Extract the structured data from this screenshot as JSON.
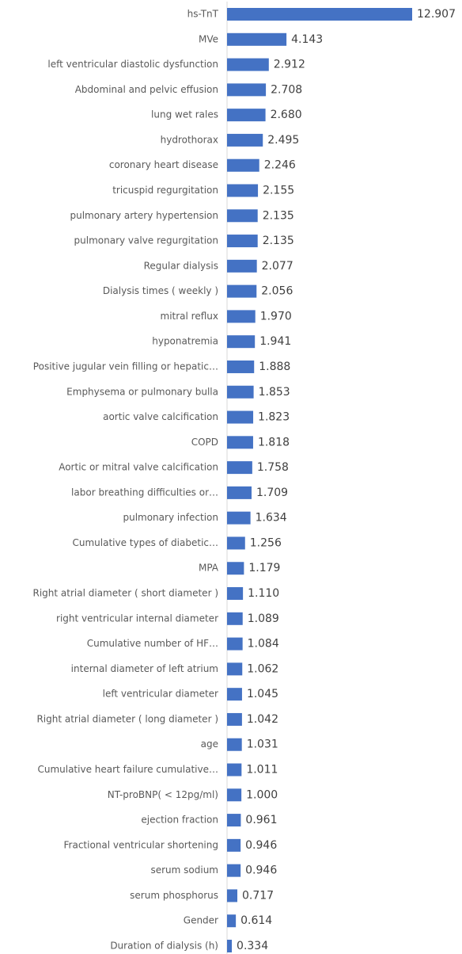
{
  "chart_data": {
    "type": "barh",
    "color": "#4472c4",
    "categories": [
      "hs-TnT",
      "MVe",
      "left ventricular diastolic dysfunction",
      "Abdominal and pelvic effusion",
      "lung wet rales",
      "hydrothorax",
      "coronary heart disease",
      "tricuspid regurgitation",
      "pulmonary artery hypertension",
      "pulmonary valve regurgitation",
      "Regular dialysis",
      "Dialysis times ( weekly )",
      "mitral reflux",
      "hyponatremia",
      "Positive jugular vein filling or hepatic…",
      "Emphysema or pulmonary bulla",
      "aortic valve calcification",
      "COPD",
      "Aortic or mitral valve calcification",
      "labor breathing difficulties or…",
      "pulmonary infection",
      "Cumulative types of diabetic…",
      "MPA",
      "Right atrial diameter ( short diameter )",
      "right ventricular internal diameter",
      "Cumulative number of HF…",
      "internal diameter of left atrium",
      "left ventricular diameter",
      "Right atrial diameter ( long diameter )",
      "age",
      "Cumulative heart failure cumulative…",
      "NT-proBNP( < 12pg/ml)",
      "ejection fraction",
      "Fractional ventricular shortening",
      "serum sodium",
      "serum phosphorus",
      "Gender",
      "Duration of dialysis (h)"
    ],
    "values": [
      12.907,
      4.143,
      2.912,
      2.708,
      2.68,
      2.495,
      2.246,
      2.155,
      2.135,
      2.135,
      2.077,
      2.056,
      1.97,
      1.941,
      1.888,
      1.853,
      1.823,
      1.818,
      1.758,
      1.709,
      1.634,
      1.256,
      1.179,
      1.11,
      1.089,
      1.084,
      1.062,
      1.045,
      1.042,
      1.031,
      1.011,
      1.0,
      0.961,
      0.946,
      0.946,
      0.717,
      0.614,
      0.334
    ],
    "value_labels": [
      "12.907",
      "4.143",
      "2.912",
      "2.708",
      "2.680",
      "2.495",
      "2.246",
      "2.155",
      "2.135",
      "2.135",
      "2.077",
      "2.056",
      "1.970",
      "1.941",
      "1.888",
      "1.853",
      "1.823",
      "1.818",
      "1.758",
      "1.709",
      "1.634",
      "1.256",
      "1.179",
      "1.110",
      "1.089",
      "1.084",
      "1.062",
      "1.045",
      "1.042",
      "1.031",
      "1.011",
      "1.000",
      "0.961",
      "0.946",
      "0.946",
      "0.717",
      "0.614",
      "0.334"
    ]
  }
}
